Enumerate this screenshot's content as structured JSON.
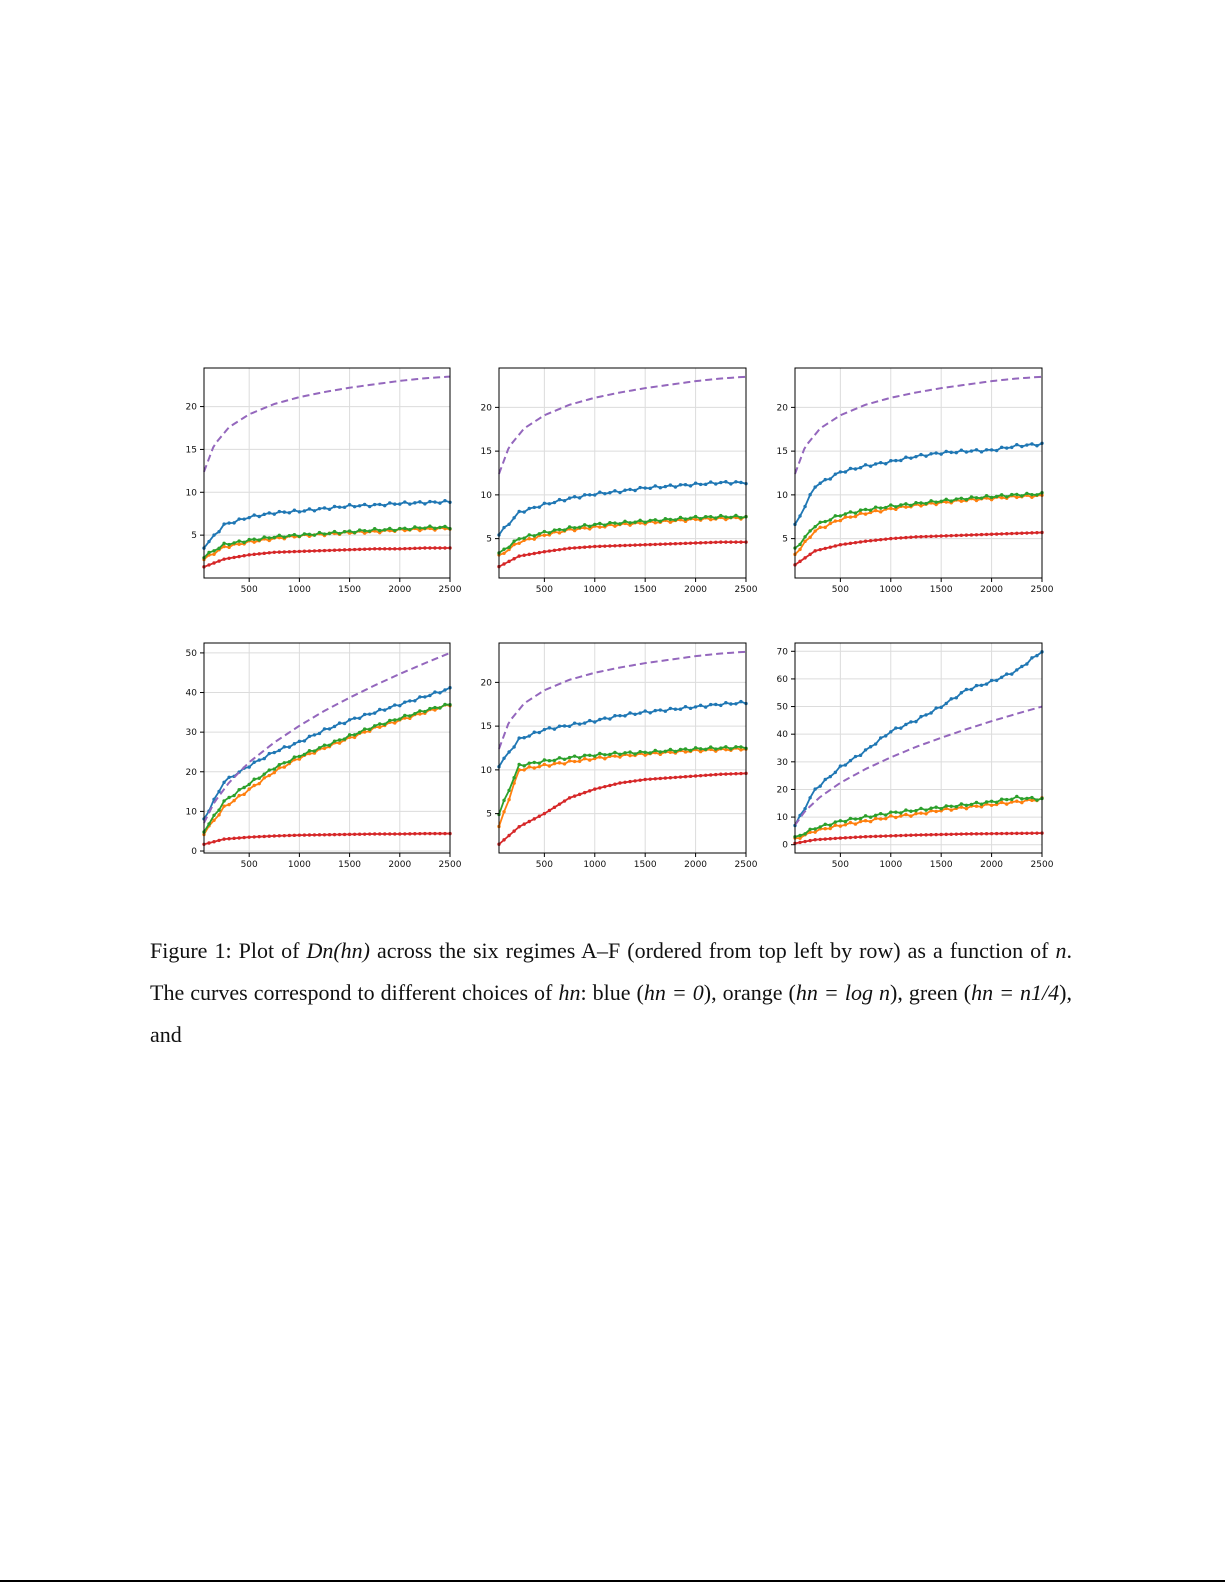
{
  "figure": {
    "colors": {
      "blue": "#1f77b4",
      "orange": "#ff7f0e",
      "green": "#2ca02c",
      "red": "#d62728",
      "purple": "#9467bd"
    },
    "panels_layout": "2 rows x 3 columns",
    "caption": {
      "label": "Figure 1:",
      "text_1": "Plot of",
      "text_2": "across the six regimes A–F (ordered from top left by row) as a function of",
      "text_3": ". The curves correspond to different choices of",
      "text_4": ": blue (",
      "text_5": "), orange (",
      "text_6": "), green (",
      "text_7": "), and",
      "math_Dn": "Dn(hn)",
      "math_n": "n",
      "math_hn": "hn",
      "math_blue": "hn = 0",
      "math_orange": "hn = log n",
      "math_green": "hn = n1/4"
    }
  },
  "chart_data": [
    {
      "type": "line",
      "panel": "A",
      "xlim": [
        50,
        2500
      ],
      "ylim": [
        0,
        24.5
      ],
      "xticks": [
        500,
        1000,
        1500,
        2000,
        2500
      ],
      "yticks": [
        5,
        10,
        15,
        20
      ],
      "grid": true,
      "series": [
        {
          "color": "blue",
          "style": "line-markers",
          "x": [
            50,
            250,
            500,
            750,
            1000,
            1250,
            1500,
            1750,
            2000,
            2250,
            2500
          ],
          "y": [
            3.6,
            6.2,
            7.1,
            7.6,
            7.8,
            8.1,
            8.4,
            8.5,
            8.7,
            8.8,
            8.9
          ]
        },
        {
          "color": "orange",
          "style": "line-markers",
          "x": [
            50,
            250,
            500,
            750,
            1000,
            1250,
            1500,
            1750,
            2000,
            2250,
            2500
          ],
          "y": [
            2.2,
            3.6,
            4.2,
            4.6,
            4.9,
            5.1,
            5.3,
            5.4,
            5.6,
            5.7,
            5.8
          ]
        },
        {
          "color": "green",
          "style": "line-markers",
          "x": [
            50,
            250,
            500,
            750,
            1000,
            1250,
            1500,
            1750,
            2000,
            2250,
            2500
          ],
          "y": [
            2.5,
            3.9,
            4.4,
            4.8,
            5.0,
            5.2,
            5.4,
            5.6,
            5.7,
            5.9,
            5.9
          ]
        },
        {
          "color": "red",
          "style": "line-markers",
          "x": [
            50,
            250,
            500,
            750,
            1000,
            1250,
            1500,
            1750,
            2000,
            2250,
            2500
          ],
          "y": [
            1.3,
            2.2,
            2.7,
            3.0,
            3.1,
            3.2,
            3.3,
            3.4,
            3.4,
            3.5,
            3.5
          ]
        },
        {
          "color": "purple",
          "style": "dashed",
          "x": [
            50,
            150,
            300,
            500,
            750,
            1000,
            1250,
            1500,
            1750,
            2000,
            2250,
            2500
          ],
          "y": [
            12.4,
            15.5,
            17.6,
            19.1,
            20.3,
            21.1,
            21.7,
            22.2,
            22.6,
            23.0,
            23.3,
            23.5
          ]
        }
      ]
    },
    {
      "type": "line",
      "panel": "B",
      "xlim": [
        50,
        2500
      ],
      "ylim": [
        0.5,
        24.5
      ],
      "xticks": [
        500,
        1000,
        1500,
        2000,
        2500
      ],
      "yticks": [
        5,
        10,
        15,
        20
      ],
      "grid": true,
      "series": [
        {
          "color": "blue",
          "style": "line-markers",
          "x": [
            50,
            250,
            500,
            750,
            1000,
            1250,
            1500,
            1750,
            2000,
            2250,
            2500
          ],
          "y": [
            5.5,
            8.0,
            8.9,
            9.6,
            10.1,
            10.4,
            10.8,
            11.0,
            11.2,
            11.4,
            11.4
          ]
        },
        {
          "color": "orange",
          "style": "line-markers",
          "x": [
            50,
            250,
            500,
            750,
            1000,
            1250,
            1500,
            1750,
            2000,
            2250,
            2500
          ],
          "y": [
            3.0,
            4.6,
            5.4,
            6.0,
            6.3,
            6.6,
            6.8,
            7.0,
            7.2,
            7.3,
            7.4
          ]
        },
        {
          "color": "green",
          "style": "line-markers",
          "x": [
            50,
            250,
            500,
            750,
            1000,
            1250,
            1500,
            1750,
            2000,
            2250,
            2500
          ],
          "y": [
            3.3,
            5.0,
            5.7,
            6.2,
            6.6,
            6.8,
            7.0,
            7.2,
            7.4,
            7.5,
            7.5
          ]
        },
        {
          "color": "red",
          "style": "line-markers",
          "x": [
            50,
            250,
            500,
            750,
            1000,
            1250,
            1500,
            1750,
            2000,
            2250,
            2500
          ],
          "y": [
            1.8,
            3.0,
            3.5,
            3.9,
            4.1,
            4.2,
            4.3,
            4.4,
            4.5,
            4.6,
            4.6
          ]
        },
        {
          "color": "purple",
          "style": "dashed",
          "x": [
            50,
            150,
            300,
            500,
            750,
            1000,
            1250,
            1500,
            1750,
            2000,
            2250,
            2500
          ],
          "y": [
            12.4,
            15.5,
            17.6,
            19.1,
            20.3,
            21.1,
            21.7,
            22.2,
            22.6,
            23.0,
            23.3,
            23.5
          ]
        }
      ]
    },
    {
      "type": "line",
      "panel": "C",
      "xlim": [
        50,
        2500
      ],
      "ylim": [
        0.5,
        24.5
      ],
      "xticks": [
        500,
        1000,
        1500,
        2000,
        2500
      ],
      "yticks": [
        5,
        10,
        15,
        20
      ],
      "grid": true,
      "series": [
        {
          "color": "blue",
          "style": "line-markers",
          "x": [
            50,
            250,
            500,
            750,
            1000,
            1250,
            1500,
            1750,
            2000,
            2250,
            2500
          ],
          "y": [
            6.5,
            11.0,
            12.6,
            13.3,
            13.8,
            14.4,
            14.8,
            15.0,
            15.1,
            15.6,
            15.8
          ]
        },
        {
          "color": "orange",
          "style": "line-markers",
          "x": [
            50,
            250,
            500,
            750,
            1000,
            1250,
            1500,
            1750,
            2000,
            2250,
            2500
          ],
          "y": [
            3.2,
            5.9,
            7.2,
            7.9,
            8.4,
            8.8,
            9.1,
            9.4,
            9.6,
            9.8,
            9.9
          ]
        },
        {
          "color": "green",
          "style": "line-markers",
          "x": [
            50,
            250,
            500,
            750,
            1000,
            1250,
            1500,
            1750,
            2000,
            2250,
            2500
          ],
          "y": [
            3.8,
            6.5,
            7.7,
            8.3,
            8.7,
            9.0,
            9.3,
            9.6,
            9.8,
            10.0,
            10.1
          ]
        },
        {
          "color": "red",
          "style": "line-markers",
          "x": [
            50,
            250,
            500,
            750,
            1000,
            1250,
            1500,
            1750,
            2000,
            2250,
            2500
          ],
          "y": [
            2.0,
            3.6,
            4.3,
            4.7,
            5.0,
            5.2,
            5.3,
            5.4,
            5.5,
            5.6,
            5.7
          ]
        },
        {
          "color": "purple",
          "style": "dashed",
          "x": [
            50,
            150,
            300,
            500,
            750,
            1000,
            1250,
            1500,
            1750,
            2000,
            2250,
            2500
          ],
          "y": [
            12.4,
            15.5,
            17.6,
            19.1,
            20.3,
            21.1,
            21.7,
            22.2,
            22.6,
            23.0,
            23.3,
            23.5
          ]
        }
      ]
    },
    {
      "type": "line",
      "panel": "D",
      "xlim": [
        50,
        2500
      ],
      "ylim": [
        -0.5,
        52.5
      ],
      "xticks": [
        500,
        1000,
        1500,
        2000,
        2500
      ],
      "yticks": [
        0,
        10,
        20,
        30,
        40,
        50
      ],
      "grid": true,
      "series": [
        {
          "color": "blue",
          "style": "line-markers",
          "x": [
            50,
            250,
            500,
            750,
            1000,
            1250,
            1500,
            1750,
            2000,
            2250,
            2500
          ],
          "y": [
            8.0,
            17.5,
            21.5,
            25.0,
            27.5,
            30.5,
            33.0,
            35.0,
            37.0,
            39.0,
            41.0
          ]
        },
        {
          "color": "orange",
          "style": "line-markers",
          "x": [
            50,
            250,
            500,
            750,
            1000,
            1250,
            1500,
            1750,
            2000,
            2250,
            2500
          ],
          "y": [
            4.5,
            11.0,
            15.5,
            20.0,
            23.5,
            26.0,
            28.5,
            31.0,
            33.0,
            35.0,
            37.0
          ]
        },
        {
          "color": "green",
          "style": "line-markers",
          "x": [
            50,
            250,
            500,
            750,
            1000,
            1250,
            1500,
            1750,
            2000,
            2250,
            2500
          ],
          "y": [
            5.0,
            12.5,
            17.0,
            21.0,
            24.0,
            26.5,
            29.0,
            31.5,
            33.5,
            35.5,
            37.0
          ]
        },
        {
          "color": "red",
          "style": "line-markers",
          "x": [
            50,
            250,
            500,
            750,
            1000,
            1250,
            1500,
            1750,
            2000,
            2250,
            2500
          ],
          "y": [
            1.7,
            3.0,
            3.5,
            3.8,
            4.0,
            4.1,
            4.2,
            4.3,
            4.3,
            4.4,
            4.4
          ]
        },
        {
          "color": "purple",
          "style": "dashed",
          "x": [
            50,
            150,
            300,
            500,
            750,
            1000,
            1250,
            1500,
            1750,
            2000,
            2250,
            2500
          ],
          "y": [
            7.1,
            12.2,
            17.3,
            22.4,
            27.4,
            31.6,
            35.4,
            38.7,
            41.8,
            44.7,
            47.4,
            50.0
          ]
        }
      ]
    },
    {
      "type": "line",
      "panel": "E",
      "xlim": [
        50,
        2500
      ],
      "ylim": [
        0.5,
        24.5
      ],
      "xticks": [
        500,
        1000,
        1500,
        2000,
        2500
      ],
      "yticks": [
        5,
        10,
        15,
        20
      ],
      "grid": true,
      "series": [
        {
          "color": "blue",
          "style": "line-markers",
          "x": [
            50,
            250,
            500,
            750,
            1000,
            1250,
            1500,
            1750,
            2000,
            2250,
            2500
          ],
          "y": [
            10.5,
            13.5,
            14.6,
            15.1,
            15.6,
            16.2,
            16.6,
            16.9,
            17.2,
            17.5,
            17.7
          ]
        },
        {
          "color": "orange",
          "style": "line-markers",
          "x": [
            50,
            250,
            500,
            750,
            1000,
            1250,
            1500,
            1750,
            2000,
            2250,
            2500
          ],
          "y": [
            3.5,
            10.0,
            10.5,
            10.9,
            11.3,
            11.6,
            11.8,
            12.0,
            12.2,
            12.3,
            12.4
          ]
        },
        {
          "color": "green",
          "style": "line-markers",
          "x": [
            50,
            250,
            500,
            750,
            1000,
            1250,
            1500,
            1750,
            2000,
            2250,
            2500
          ],
          "y": [
            5.0,
            10.5,
            11.0,
            11.4,
            11.7,
            11.9,
            12.0,
            12.2,
            12.4,
            12.5,
            12.6
          ]
        },
        {
          "color": "red",
          "style": "line-markers",
          "x": [
            50,
            250,
            500,
            750,
            1000,
            1250,
            1500,
            1750,
            2000,
            2250,
            2500
          ],
          "y": [
            1.5,
            3.5,
            5.0,
            6.8,
            7.8,
            8.5,
            8.9,
            9.1,
            9.3,
            9.5,
            9.6
          ]
        },
        {
          "color": "purple",
          "style": "dashed",
          "x": [
            50,
            150,
            300,
            500,
            750,
            1000,
            1250,
            1500,
            1750,
            2000,
            2250,
            2500
          ],
          "y": [
            12.4,
            15.5,
            17.6,
            19.1,
            20.3,
            21.1,
            21.7,
            22.2,
            22.6,
            23.0,
            23.3,
            23.5
          ]
        }
      ]
    },
    {
      "type": "line",
      "panel": "F",
      "xlim": [
        50,
        2500
      ],
      "ylim": [
        -3,
        73
      ],
      "xticks": [
        500,
        1000,
        1500,
        2000,
        2500
      ],
      "yticks": [
        0,
        10,
        20,
        30,
        40,
        50,
        60,
        70
      ],
      "grid": true,
      "series": [
        {
          "color": "blue",
          "style": "line-markers",
          "x": [
            50,
            250,
            500,
            750,
            1000,
            1250,
            1500,
            1750,
            2000,
            2250,
            2500
          ],
          "y": [
            7.0,
            20.0,
            28.0,
            34.0,
            41.0,
            45.0,
            50.0,
            56.0,
            59.0,
            63.0,
            70.0
          ]
        },
        {
          "color": "orange",
          "style": "line-markers",
          "x": [
            50,
            250,
            500,
            750,
            1000,
            1250,
            1500,
            1750,
            2000,
            2250,
            2500
          ],
          "y": [
            2.0,
            5.0,
            7.0,
            8.5,
            10.0,
            11.0,
            12.5,
            13.5,
            14.5,
            15.5,
            16.5
          ]
        },
        {
          "color": "green",
          "style": "line-markers",
          "x": [
            50,
            250,
            500,
            750,
            1000,
            1250,
            1500,
            1750,
            2000,
            2250,
            2500
          ],
          "y": [
            2.5,
            6.0,
            8.5,
            10.0,
            11.5,
            12.5,
            13.5,
            14.5,
            15.5,
            17.0,
            16.5
          ]
        },
        {
          "color": "red",
          "style": "line-markers",
          "x": [
            50,
            250,
            500,
            750,
            1000,
            1250,
            1500,
            1750,
            2000,
            2250,
            2500
          ],
          "y": [
            0.5,
            1.8,
            2.4,
            2.9,
            3.2,
            3.5,
            3.7,
            3.9,
            4.0,
            4.1,
            4.2
          ]
        },
        {
          "color": "purple",
          "style": "dashed",
          "x": [
            50,
            150,
            300,
            500,
            750,
            1000,
            1250,
            1500,
            1750,
            2000,
            2250,
            2500
          ],
          "y": [
            7.1,
            12.2,
            17.3,
            22.4,
            27.4,
            31.6,
            35.4,
            38.7,
            41.8,
            44.7,
            47.4,
            50.0
          ]
        }
      ]
    }
  ]
}
